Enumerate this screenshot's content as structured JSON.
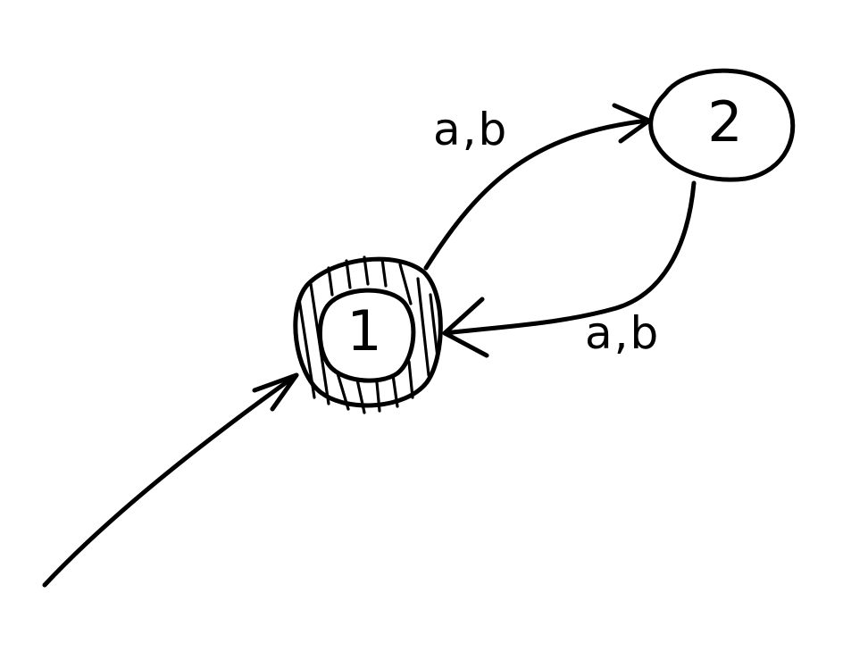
{
  "diagram": {
    "states": [
      {
        "id": "1",
        "label": "1",
        "initial": true,
        "accepting": true
      },
      {
        "id": "2",
        "label": "2",
        "initial": false,
        "accepting": false
      }
    ],
    "transitions": [
      {
        "from": "1",
        "to": "2",
        "label": "a,b"
      },
      {
        "from": "2",
        "to": "1",
        "label": "a,b"
      }
    ],
    "colors": {
      "ink": "#000000",
      "background": "#ffffff"
    }
  }
}
